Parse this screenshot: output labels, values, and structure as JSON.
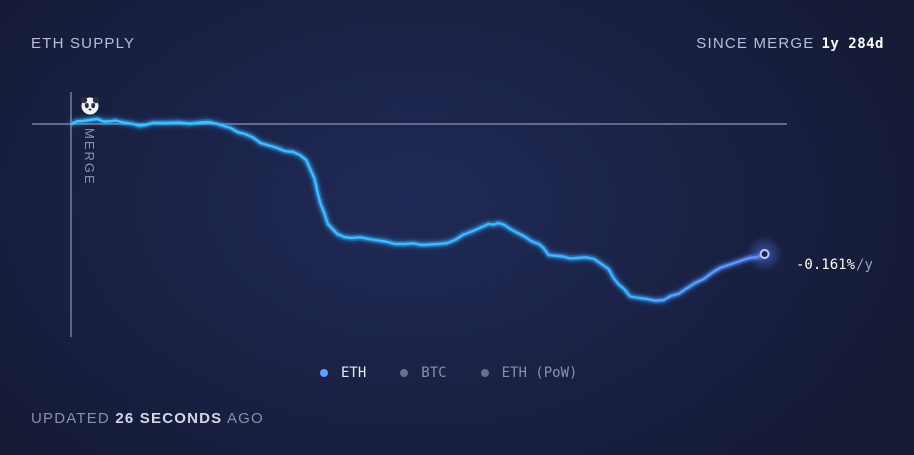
{
  "title": "ETH SUPPLY",
  "since": {
    "label": "SINCE MERGE",
    "value": "1y 284d"
  },
  "merge_label": "MERGE",
  "current_rate": {
    "value": "-0.161%",
    "unit": "/y"
  },
  "legend": [
    {
      "label": "ETH",
      "active": true
    },
    {
      "label": "BTC",
      "active": false
    },
    {
      "label": "ETH (PoW)",
      "active": false
    }
  ],
  "footer": {
    "prefix": "UPDATED",
    "value": "26 SECONDS",
    "suffix": "AGO"
  },
  "colors": {
    "line": "#3fb8ff",
    "glow": "#2a8cff",
    "baseline": "#8f95ad",
    "background": "#1a2247"
  },
  "chart_data": {
    "type": "line",
    "title": "ETH SUPPLY",
    "xlabel": "",
    "ylabel": "",
    "x_unit": "days since merge",
    "y_unit": "relative supply change",
    "baseline_at_merge": 0,
    "annotation": "MERGE",
    "series": [
      {
        "name": "ETH",
        "points": [
          [
            0,
            0.0
          ],
          [
            10,
            0.006
          ],
          [
            22,
            0.01
          ],
          [
            32,
            0.005
          ],
          [
            42,
            0.004
          ],
          [
            52,
            0.0
          ],
          [
            62,
            -0.002
          ],
          [
            75,
            0.002
          ],
          [
            90,
            0.003
          ],
          [
            108,
            0.003
          ],
          [
            122,
            0.0
          ],
          [
            133,
            -0.008
          ],
          [
            145,
            -0.02
          ],
          [
            158,
            -0.038
          ],
          [
            172,
            -0.048
          ],
          [
            185,
            -0.056
          ],
          [
            196,
            -0.072
          ],
          [
            203,
            -0.11
          ],
          [
            208,
            -0.16
          ],
          [
            214,
            -0.2
          ],
          [
            222,
            -0.22
          ],
          [
            234,
            -0.228
          ],
          [
            248,
            -0.23
          ],
          [
            262,
            -0.235
          ],
          [
            278,
            -0.24
          ],
          [
            292,
            -0.242
          ],
          [
            306,
            -0.24
          ],
          [
            320,
            -0.232
          ],
          [
            334,
            -0.215
          ],
          [
            348,
            -0.2
          ],
          [
            356,
            -0.198
          ],
          [
            366,
            -0.21
          ],
          [
            378,
            -0.225
          ],
          [
            390,
            -0.24
          ],
          [
            398,
            -0.262
          ],
          [
            410,
            -0.265
          ],
          [
            422,
            -0.268
          ],
          [
            436,
            -0.27
          ],
          [
            448,
            -0.29
          ],
          [
            456,
            -0.32
          ],
          [
            466,
            -0.345
          ],
          [
            480,
            -0.35
          ],
          [
            494,
            -0.352
          ],
          [
            506,
            -0.34
          ],
          [
            520,
            -0.318
          ],
          [
            534,
            -0.298
          ],
          [
            548,
            -0.282
          ],
          [
            565,
            -0.268
          ],
          [
            578,
            -0.26
          ]
        ]
      }
    ],
    "x_range": [
      0,
      620
    ],
    "y_range": [
      -0.38,
      0.02
    ]
  }
}
